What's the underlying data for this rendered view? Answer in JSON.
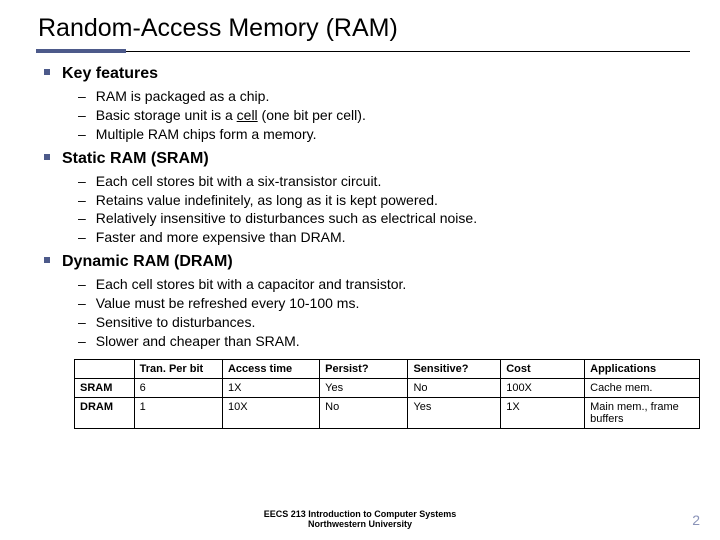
{
  "title": "Random-Access Memory (RAM)",
  "sections": [
    {
      "header": "Key features",
      "items": [
        "RAM is packaged as a chip.",
        "Basic storage unit is a ",
        "Multiple RAM chips form a memory."
      ],
      "item1_prefix": "Basic storage unit is a ",
      "item1_underline": "cell",
      "item1_suffix": " (one bit per cell)."
    },
    {
      "header": "Static RAM (SRAM)",
      "items": [
        "Each cell stores bit with a six-transistor circuit.",
        "Retains value indefinitely, as long as it is kept powered.",
        "Relatively insensitive to disturbances such as electrical noise.",
        "Faster and more expensive than DRAM."
      ]
    },
    {
      "header": "Dynamic RAM (DRAM)",
      "items": [
        "Each cell stores bit with a capacitor and transistor.",
        "Value must be refreshed every 10-100 ms.",
        "Sensitive to disturbances.",
        "Slower and cheaper than SRAM."
      ]
    }
  ],
  "table": {
    "columns": [
      "",
      "Tran. Per bit",
      "Access time",
      "Persist?",
      "Sensitive?",
      "Cost",
      "Applications"
    ],
    "rows": [
      [
        "SRAM",
        "6",
        "1X",
        "Yes",
        "No",
        "100X",
        "Cache mem."
      ],
      [
        "DRAM",
        "1",
        "10X",
        "No",
        "Yes",
        "1X",
        "Main mem., frame buffers"
      ]
    ]
  },
  "footer_line1": "EECS 213 Introduction to Computer Systems",
  "footer_line2": "Northwestern University",
  "page_number": "2",
  "colors": {
    "accent": "#4d5a8a",
    "pagenum": "#8a93b8"
  }
}
